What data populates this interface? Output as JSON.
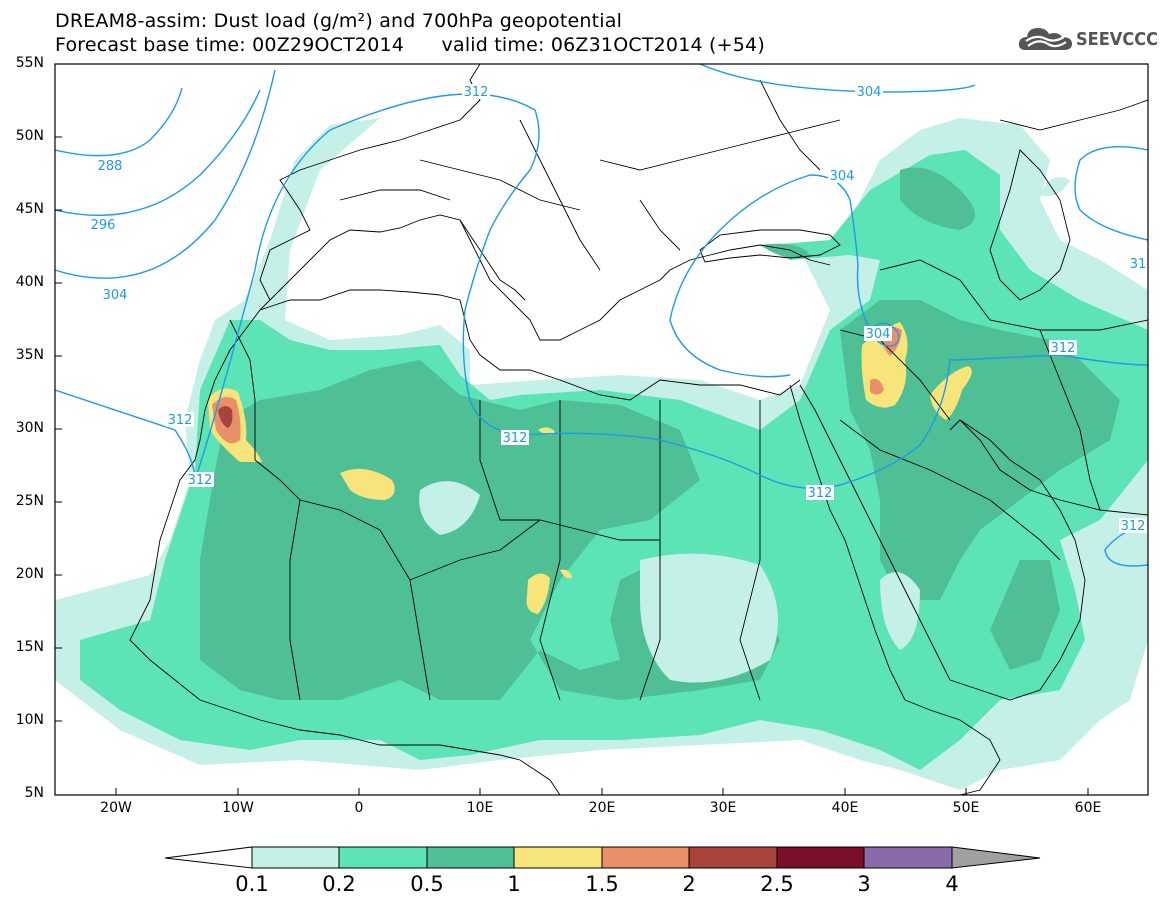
{
  "title": {
    "line1": "DREAM8-assim: Dust load (g/m²) and 700hPa geopotential",
    "line2_left": "Forecast base time: 00Z29OCT2014",
    "line2_right": "valid time: 06Z31OCT2014 (+54)"
  },
  "logo": {
    "text": "SEEVCCC",
    "icon": "cloud-logo-icon"
  },
  "map": {
    "lat_labels": [
      "55N",
      "50N",
      "45N",
      "40N",
      "35N",
      "30N",
      "25N",
      "20N",
      "15N",
      "10N",
      "5N"
    ],
    "lon_labels": [
      "20W",
      "10W",
      "0",
      "10E",
      "20E",
      "30E",
      "40E",
      "50E",
      "60E"
    ],
    "contour_labels": [
      "288",
      "296",
      "304",
      "312",
      "312",
      "312",
      "312",
      "304",
      "304",
      "304",
      "312",
      "312",
      "31"
    ]
  },
  "colorbar": {
    "levels": [
      "0.1",
      "0.2",
      "0.5",
      "1",
      "1.5",
      "2",
      "2.5",
      "3",
      "4"
    ],
    "colors": [
      "#c5f0e8",
      "#5ce3b6",
      "#4fbf95",
      "#f7e47a",
      "#e8906a",
      "#a8443a",
      "#7a0f2a",
      "#8a6aa8",
      "#a0a0a0"
    ]
  },
  "colors": {
    "dust_0_1": "#c5f0e8",
    "dust_0_2": "#5ce3b6",
    "dust_0_5": "#4fbf95",
    "dust_1": "#f7e47a",
    "dust_1_5": "#e8906a",
    "dust_2": "#a8443a",
    "contour": "#1f9ae6"
  }
}
